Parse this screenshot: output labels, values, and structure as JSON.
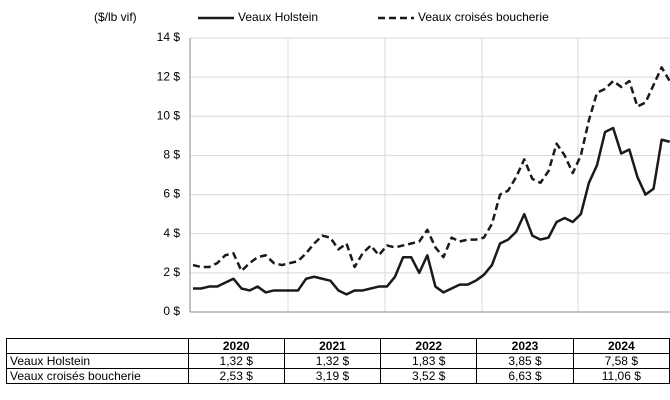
{
  "chart_data": {
    "type": "line",
    "y_label": "($/lb vif)",
    "ylim": [
      0,
      14
    ],
    "yticks": [
      {
        "value": 0,
        "label": "0 $"
      },
      {
        "value": 2,
        "label": "2 $"
      },
      {
        "value": 4,
        "label": "4 $"
      },
      {
        "value": 6,
        "label": "6 $"
      },
      {
        "value": 8,
        "label": "8 $"
      },
      {
        "value": 10,
        "label": "10 $"
      },
      {
        "value": 12,
        "label": "12 $"
      },
      {
        "value": 14,
        "label": "14 $"
      }
    ],
    "grid": true,
    "series": [
      {
        "name": "Veaux Holstein",
        "color": "#1a1a1a",
        "style": "solid",
        "values": [
          1.2,
          1.2,
          1.3,
          1.3,
          1.5,
          1.7,
          1.2,
          1.1,
          1.3,
          1.0,
          1.1,
          1.1,
          1.1,
          1.1,
          1.7,
          1.8,
          1.7,
          1.6,
          1.1,
          0.9,
          1.1,
          1.1,
          1.2,
          1.3,
          1.3,
          1.8,
          2.8,
          2.8,
          2.0,
          2.9,
          1.3,
          1.0,
          1.2,
          1.4,
          1.4,
          1.6,
          1.9,
          2.4,
          3.5,
          3.7,
          4.1,
          5.0,
          3.9,
          3.7,
          3.8,
          4.6,
          4.8,
          4.6,
          5.0,
          6.6,
          7.5,
          9.2,
          9.4,
          8.1,
          8.3,
          6.9,
          6.0,
          6.3,
          8.8,
          8.7
        ]
      },
      {
        "name": "Veaux croisés boucherie",
        "color": "#1a1a1a",
        "style": "dashed",
        "values": [
          2.4,
          2.3,
          2.3,
          2.5,
          2.9,
          3.0,
          2.1,
          2.5,
          2.8,
          2.9,
          2.5,
          2.4,
          2.5,
          2.6,
          3.0,
          3.5,
          3.9,
          3.8,
          3.2,
          3.5,
          2.3,
          3.0,
          3.4,
          2.9,
          3.4,
          3.3,
          3.4,
          3.5,
          3.6,
          4.2,
          3.3,
          2.8,
          3.8,
          3.6,
          3.7,
          3.7,
          3.8,
          4.5,
          6.0,
          6.2,
          6.9,
          7.8,
          6.8,
          6.6,
          7.2,
          8.6,
          8.0,
          7.1,
          8.0,
          9.8,
          11.2,
          11.4,
          11.8,
          11.5,
          11.8,
          10.5,
          10.7,
          11.6,
          12.5,
          11.8
        ]
      }
    ]
  },
  "table": {
    "header": [
      "2020",
      "2021",
      "2022",
      "2023",
      "2024"
    ],
    "rows": [
      [
        "Veaux Holstein",
        "1,32 $",
        "1,32 $",
        "1,83 $",
        "3,85 $",
        "7,58 $"
      ],
      [
        "Veaux croisés boucherie",
        "2,53 $",
        "3,19 $",
        "3,52 $",
        "6,63 $",
        "11,06 $"
      ]
    ]
  }
}
